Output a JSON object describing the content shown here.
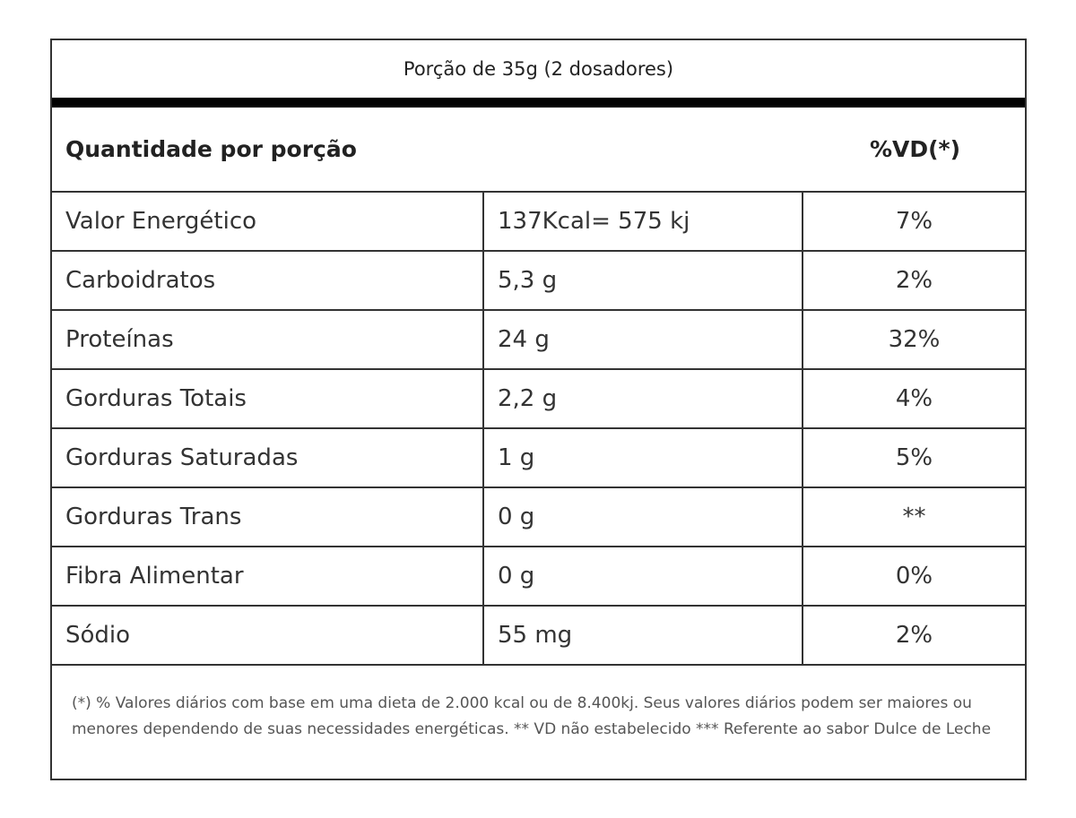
{
  "portion": "Porção de 35g (2 dosadores)",
  "header": {
    "quantity": "Quantidade por porção",
    "vd": "%VD(*)"
  },
  "rows": [
    {
      "name": "Valor Energético",
      "amount": "137Kcal= 575 kj",
      "vd": "7%"
    },
    {
      "name": "Carboidratos",
      "amount": "5,3 g",
      "vd": "2%"
    },
    {
      "name": "Proteínas",
      "amount": "24 g",
      "vd": "32%"
    },
    {
      "name": "Gorduras Totais",
      "amount": "2,2 g",
      "vd": "4%"
    },
    {
      "name": "Gorduras Saturadas",
      "amount": "1 g",
      "vd": "5%"
    },
    {
      "name": "Gorduras Trans",
      "amount": "0 g",
      "vd": "**"
    },
    {
      "name": "Fibra Alimentar",
      "amount": "0 g",
      "vd": "0%"
    },
    {
      "name": "Sódio",
      "amount": "55 mg",
      "vd": "2%"
    }
  ],
  "footnote": "(*) % Valores diários com base em uma dieta de 2.000 kcal ou de 8.400kj. Seus valores diários podem ser maiores ou menores dependendo de suas necessidades energéticas. ** VD não estabelecido *** Referente ao sabor Dulce de Leche"
}
